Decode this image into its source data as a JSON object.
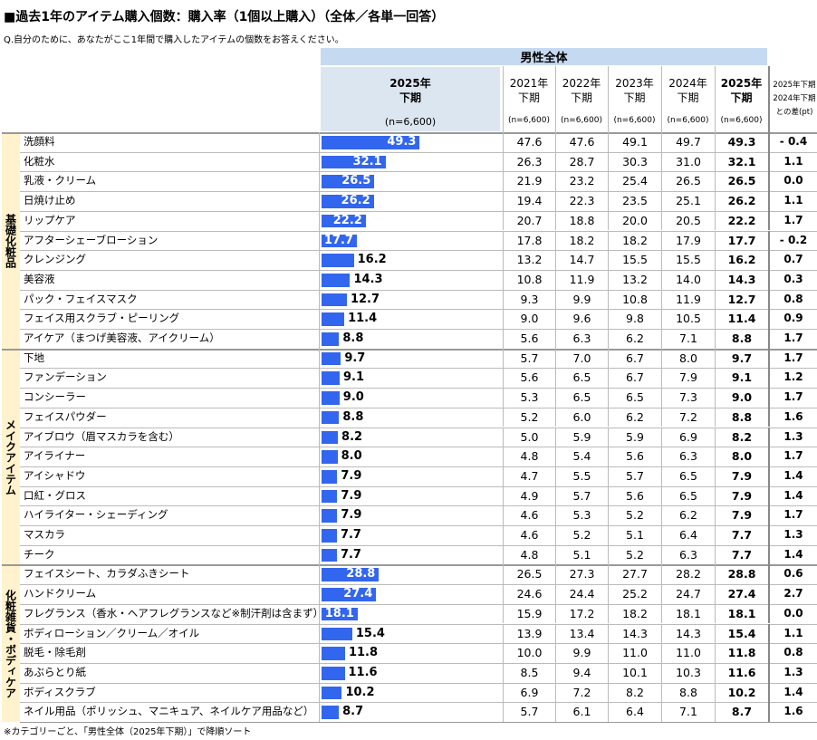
{
  "header": {
    "title": "■過去1年のアイテム購入個数：購入率（1個以上購入）（全体／各単一回答）",
    "question": "Q.自分のために、あなたがここ1年間で購入したアイテムの個数をお答えください。"
  },
  "table": {
    "group_header": "男性全体",
    "bar_header": {
      "year": "2025年",
      "half": "下期",
      "n": "(n=6,600)"
    },
    "columns": [
      {
        "year": "2021年",
        "half": "下期",
        "n": "(n=6,600)"
      },
      {
        "year": "2022年",
        "half": "下期",
        "n": "(n=6,600)"
      },
      {
        "year": "2023年",
        "half": "下期",
        "n": "(n=6,600)"
      },
      {
        "year": "2024年",
        "half": "下期",
        "n": "(n=6,600)"
      },
      {
        "year": "2025年",
        "half": "下期",
        "n": "(n=6,600)"
      }
    ],
    "diff_header": [
      "2025年下期",
      "2024年下期",
      "との差(pt)"
    ],
    "sections": [
      {
        "name": "基礎化粧品",
        "rows": [
          {
            "item": "洗顔料",
            "values": [
              "47.6",
              "47.6",
              "49.1",
              "49.7"
            ],
            "share": 49.3,
            "share_label": "49.3",
            "diff": "- 0.4"
          },
          {
            "item": "化粧水",
            "values": [
              "26.3",
              "28.7",
              "30.3",
              "31.0"
            ],
            "share": 32.1,
            "share_label": "32.1",
            "diff": "1.1"
          },
          {
            "item": "乳液・クリーム",
            "values": [
              "21.9",
              "23.2",
              "25.4",
              "26.5"
            ],
            "share": 26.5,
            "share_label": "26.5",
            "diff": "0.0"
          },
          {
            "item": "日焼け止め",
            "values": [
              "19.4",
              "22.3",
              "23.5",
              "25.1"
            ],
            "share": 26.2,
            "share_label": "26.2",
            "diff": "1.1"
          },
          {
            "item": "リップケア",
            "values": [
              "20.7",
              "18.8",
              "20.0",
              "20.5"
            ],
            "share": 22.2,
            "share_label": "22.2",
            "diff": "1.7"
          },
          {
            "item": "アフターシェーブローション",
            "values": [
              "17.8",
              "18.2",
              "18.2",
              "17.9"
            ],
            "share": 17.7,
            "share_label": "17.7",
            "diff": "- 0.2"
          },
          {
            "item": "クレンジング",
            "values": [
              "13.2",
              "14.7",
              "15.5",
              "15.5"
            ],
            "share": 16.2,
            "share_label": "16.2",
            "diff": "0.7"
          },
          {
            "item": "美容液",
            "values": [
              "10.8",
              "11.9",
              "13.2",
              "14.0"
            ],
            "share": 14.3,
            "share_label": "14.3",
            "diff": "0.3"
          },
          {
            "item": "パック・フェイスマスク",
            "values": [
              "9.3",
              "9.9",
              "10.8",
              "11.9"
            ],
            "share": 12.7,
            "share_label": "12.7",
            "diff": "0.8"
          },
          {
            "item": "フェイス用スクラブ・ピーリング",
            "values": [
              "9.0",
              "9.6",
              "9.8",
              "10.5"
            ],
            "share": 11.4,
            "share_label": "11.4",
            "diff": "0.9"
          },
          {
            "item": "アイケア（まつげ美容液、アイクリーム）",
            "values": [
              "5.6",
              "6.3",
              "6.2",
              "7.1"
            ],
            "share": 8.8,
            "share_label": "8.8",
            "diff": "1.7"
          }
        ]
      },
      {
        "name": "メイクアイテム",
        "rows": [
          {
            "item": "下地",
            "values": [
              "5.7",
              "7.0",
              "6.7",
              "8.0"
            ],
            "share": 9.7,
            "share_label": "9.7",
            "diff": "1.7"
          },
          {
            "item": "ファンデーション",
            "values": [
              "5.6",
              "6.5",
              "6.7",
              "7.9"
            ],
            "share": 9.1,
            "share_label": "9.1",
            "diff": "1.2"
          },
          {
            "item": "コンシーラー",
            "values": [
              "5.3",
              "6.5",
              "6.5",
              "7.3"
            ],
            "share": 9.0,
            "share_label": "9.0",
            "diff": "1.7"
          },
          {
            "item": "フェイスパウダー",
            "values": [
              "5.2",
              "6.0",
              "6.2",
              "7.2"
            ],
            "share": 8.8,
            "share_label": "8.8",
            "diff": "1.6"
          },
          {
            "item": "アイブロウ（眉マスカラを含む）",
            "values": [
              "5.0",
              "5.9",
              "5.9",
              "6.9"
            ],
            "share": 8.2,
            "share_label": "8.2",
            "diff": "1.3"
          },
          {
            "item": "アイライナー",
            "values": [
              "4.8",
              "5.4",
              "5.6",
              "6.3"
            ],
            "share": 8.0,
            "share_label": "8.0",
            "diff": "1.7"
          },
          {
            "item": "アイシャドウ",
            "values": [
              "4.7",
              "5.5",
              "5.7",
              "6.5"
            ],
            "share": 7.9,
            "share_label": "7.9",
            "diff": "1.4"
          },
          {
            "item": "口紅・グロス",
            "values": [
              "4.9",
              "5.7",
              "5.6",
              "6.5"
            ],
            "share": 7.9,
            "share_label": "7.9",
            "diff": "1.4"
          },
          {
            "item": "ハイライター・シェーディング",
            "values": [
              "4.6",
              "5.3",
              "5.2",
              "6.2"
            ],
            "share": 7.9,
            "share_label": "7.9",
            "diff": "1.7"
          },
          {
            "item": "マスカラ",
            "values": [
              "4.6",
              "5.2",
              "5.1",
              "6.4"
            ],
            "share": 7.7,
            "share_label": "7.7",
            "diff": "1.3"
          },
          {
            "item": "チーク",
            "values": [
              "4.8",
              "5.1",
              "5.2",
              "6.3"
            ],
            "share": 7.7,
            "share_label": "7.7",
            "diff": "1.4"
          }
        ]
      },
      {
        "name": "化粧雑貨・ボディケア",
        "rows": [
          {
            "item": "フェイスシート、カラダふきシート",
            "values": [
              "26.5",
              "27.3",
              "27.7",
              "28.2"
            ],
            "share": 28.8,
            "share_label": "28.8",
            "diff": "0.6"
          },
          {
            "item": "ハンドクリーム",
            "values": [
              "24.6",
              "24.4",
              "25.2",
              "24.7"
            ],
            "share": 27.4,
            "share_label": "27.4",
            "diff": "2.7"
          },
          {
            "item": "フレグランス（香水・ヘアフレグランスなど※制汗剤は含まず）",
            "values": [
              "15.9",
              "17.2",
              "18.2",
              "18.1"
            ],
            "share": 18.1,
            "share_label": "18.1",
            "diff": "0.0"
          },
          {
            "item": "ボディローション／クリーム／オイル",
            "values": [
              "13.9",
              "13.4",
              "14.3",
              "14.3"
            ],
            "share": 15.4,
            "share_label": "15.4",
            "diff": "1.1"
          },
          {
            "item": "脱毛・除毛剤",
            "values": [
              "10.0",
              "9.9",
              "11.0",
              "11.0"
            ],
            "share": 11.8,
            "share_label": "11.8",
            "diff": "0.8"
          },
          {
            "item": "あぶらとり紙",
            "values": [
              "8.5",
              "9.4",
              "10.1",
              "10.3"
            ],
            "share": 11.6,
            "share_label": "11.6",
            "diff": "1.3"
          },
          {
            "item": "ボディスクラブ",
            "values": [
              "6.9",
              "7.2",
              "8.2",
              "8.8"
            ],
            "share": 10.2,
            "share_label": "10.2",
            "diff": "1.4"
          },
          {
            "item": "ネイル用品（ポリッシュ、マニキュア、ネイルケア用品など）",
            "values": [
              "5.7",
              "6.1",
              "6.4",
              "7.1"
            ],
            "share": 8.7,
            "share_label": "8.7",
            "diff": "1.6"
          }
        ]
      }
    ]
  },
  "footnote": "※カテゴリーごと、「男性全体（2025年下期）」で降順ソート"
}
